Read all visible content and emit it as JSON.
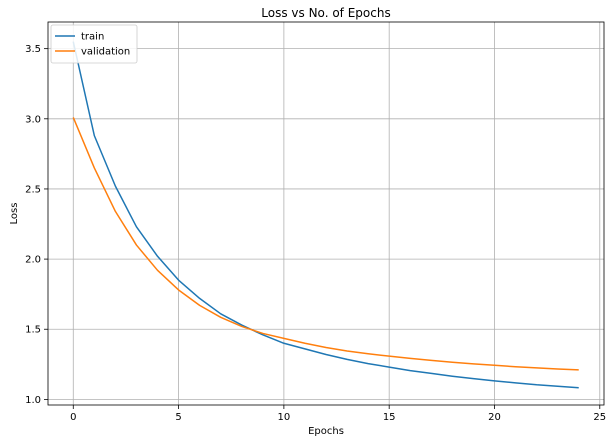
{
  "chart_data": {
    "type": "line",
    "title": "Loss vs No. of Epochs",
    "xlabel": "Epochs",
    "ylabel": "Loss",
    "xlim": [
      -1.2,
      25.2
    ],
    "ylim": [
      0.96,
      3.69
    ],
    "xticks": [
      0,
      5,
      10,
      15,
      20,
      25
    ],
    "yticks": [
      1.0,
      1.5,
      2.0,
      2.5,
      3.0,
      3.5
    ],
    "ytick_labels": [
      "1.0",
      "1.5",
      "2.0",
      "2.5",
      "3.0",
      "3.5"
    ],
    "grid": true,
    "legend_position": "top-left",
    "x": [
      0,
      1,
      2,
      3,
      4,
      5,
      6,
      7,
      8,
      9,
      10,
      11,
      12,
      13,
      14,
      15,
      16,
      17,
      18,
      19,
      20,
      21,
      22,
      23,
      24
    ],
    "series": [
      {
        "name": "train",
        "color": "#1f77b4",
        "values": [
          3.55,
          2.88,
          2.52,
          2.23,
          2.02,
          1.85,
          1.72,
          1.61,
          1.53,
          1.46,
          1.4,
          1.36,
          1.32,
          1.285,
          1.255,
          1.23,
          1.205,
          1.185,
          1.165,
          1.148,
          1.132,
          1.118,
          1.104,
          1.094,
          1.083
        ]
      },
      {
        "name": "validation",
        "color": "#ff7f0e",
        "values": [
          3.01,
          2.65,
          2.34,
          2.1,
          1.92,
          1.78,
          1.67,
          1.585,
          1.52,
          1.47,
          1.435,
          1.4,
          1.37,
          1.345,
          1.325,
          1.308,
          1.292,
          1.278,
          1.265,
          1.253,
          1.243,
          1.233,
          1.225,
          1.217,
          1.21
        ]
      }
    ]
  }
}
